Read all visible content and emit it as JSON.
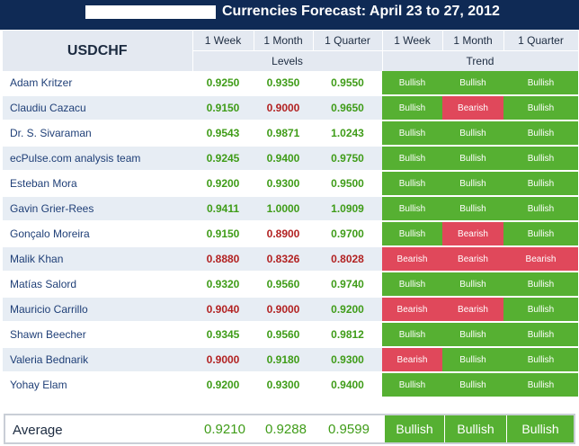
{
  "title": "Currencies Forecast: April 23 to 27, 2012",
  "pair": "USDCHF",
  "columns": {
    "levels": [
      "1 Week",
      "1 Month",
      "1 Quarter"
    ],
    "trend": [
      "1 Week",
      "1 Month",
      "1 Quarter"
    ],
    "levels_group": "Levels",
    "trend_group": "Trend"
  },
  "colors": {
    "bullish": "#56b032",
    "bearish": "#e0485b",
    "header": "#0f2a55",
    "up_text": "#3f9c18",
    "down_text": "#b22222"
  },
  "rows": [
    {
      "name": "Adam Kritzer",
      "levels": [
        "0.9250",
        "0.9350",
        "0.9550"
      ],
      "dir": [
        "up",
        "up",
        "up"
      ],
      "trend": [
        "Bullish",
        "Bullish",
        "Bullish"
      ]
    },
    {
      "name": "Claudiu Cazacu",
      "levels": [
        "0.9150",
        "0.9000",
        "0.9650"
      ],
      "dir": [
        "up",
        "down",
        "up"
      ],
      "trend": [
        "Bullish",
        "Bearish",
        "Bullish"
      ]
    },
    {
      "name": "Dr. S. Sivaraman",
      "levels": [
        "0.9543",
        "0.9871",
        "1.0243"
      ],
      "dir": [
        "up",
        "up",
        "up"
      ],
      "trend": [
        "Bullish",
        "Bullish",
        "Bullish"
      ]
    },
    {
      "name": "ecPulse.com analysis team",
      "levels": [
        "0.9245",
        "0.9400",
        "0.9750"
      ],
      "dir": [
        "up",
        "up",
        "up"
      ],
      "trend": [
        "Bullish",
        "Bullish",
        "Bullish"
      ]
    },
    {
      "name": "Esteban Mora",
      "levels": [
        "0.9200",
        "0.9300",
        "0.9500"
      ],
      "dir": [
        "up",
        "up",
        "up"
      ],
      "trend": [
        "Bullish",
        "Bullish",
        "Bullish"
      ]
    },
    {
      "name": "Gavin Grier-Rees",
      "levels": [
        "0.9411",
        "1.0000",
        "1.0909"
      ],
      "dir": [
        "up",
        "up",
        "up"
      ],
      "trend": [
        "Bullish",
        "Bullish",
        "Bullish"
      ]
    },
    {
      "name": "Gonçalo Moreira",
      "levels": [
        "0.9150",
        "0.8900",
        "0.9700"
      ],
      "dir": [
        "up",
        "down",
        "up"
      ],
      "trend": [
        "Bullish",
        "Bearish",
        "Bullish"
      ]
    },
    {
      "name": "Malik Khan",
      "levels": [
        "0.8880",
        "0.8326",
        "0.8028"
      ],
      "dir": [
        "down",
        "down",
        "down"
      ],
      "trend": [
        "Bearish",
        "Bearish",
        "Bearish"
      ]
    },
    {
      "name": "Matías Salord",
      "levels": [
        "0.9320",
        "0.9560",
        "0.9740"
      ],
      "dir": [
        "up",
        "up",
        "up"
      ],
      "trend": [
        "Bullish",
        "Bullish",
        "Bullish"
      ]
    },
    {
      "name": "Mauricio Carrillo",
      "levels": [
        "0.9040",
        "0.9000",
        "0.9200"
      ],
      "dir": [
        "down",
        "down",
        "up"
      ],
      "trend": [
        "Bearish",
        "Bearish",
        "Bullish"
      ]
    },
    {
      "name": "Shawn Beecher",
      "levels": [
        "0.9345",
        "0.9560",
        "0.9812"
      ],
      "dir": [
        "up",
        "up",
        "up"
      ],
      "trend": [
        "Bullish",
        "Bullish",
        "Bullish"
      ]
    },
    {
      "name": "Valeria Bednarik",
      "levels": [
        "0.9000",
        "0.9180",
        "0.9300"
      ],
      "dir": [
        "down",
        "up",
        "up"
      ],
      "trend": [
        "Bearish",
        "Bullish",
        "Bullish"
      ]
    },
    {
      "name": "Yohay Elam",
      "levels": [
        "0.9200",
        "0.9300",
        "0.9400"
      ],
      "dir": [
        "up",
        "up",
        "up"
      ],
      "trend": [
        "Bullish",
        "Bullish",
        "Bullish"
      ]
    }
  ],
  "average": {
    "label": "Average",
    "levels": [
      "0.9210",
      "0.9288",
      "0.9599"
    ],
    "trend": [
      "Bullish",
      "Bullish",
      "Bullish"
    ]
  }
}
